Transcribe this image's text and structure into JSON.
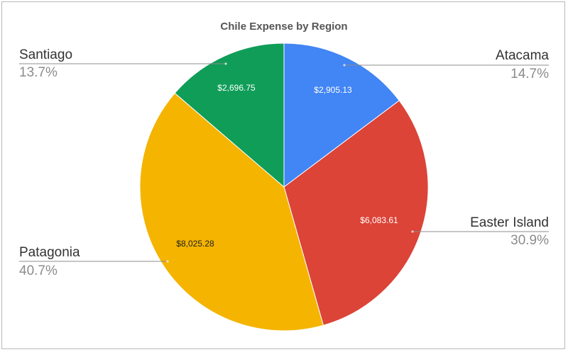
{
  "chart_data": {
    "type": "pie",
    "title": "Chile Expense by Region",
    "slices": [
      {
        "name": "Atacama",
        "value": 2905.13,
        "value_label": "$2,905.13",
        "percent": "14.7%",
        "color": "#4285f4",
        "value_text_color": "#ffffff"
      },
      {
        "name": "Easter Island",
        "value": 6083.61,
        "value_label": "$6,083.61",
        "percent": "30.9%",
        "color": "#db4437",
        "value_text_color": "#ffffff"
      },
      {
        "name": "Patagonia",
        "value": 8025.28,
        "value_label": "$8,025.28",
        "percent": "40.7%",
        "color": "#f4b400",
        "value_text_color": "#222222"
      },
      {
        "name": "Santiago",
        "value": 2696.75,
        "value_label": "$2,696.75",
        "percent": "13.7%",
        "color": "#0f9d58",
        "value_text_color": "#ffffff"
      }
    ],
    "start_angle": "12 o'clock",
    "direction": "clockwise",
    "legend": "outside labels with leader lines"
  }
}
